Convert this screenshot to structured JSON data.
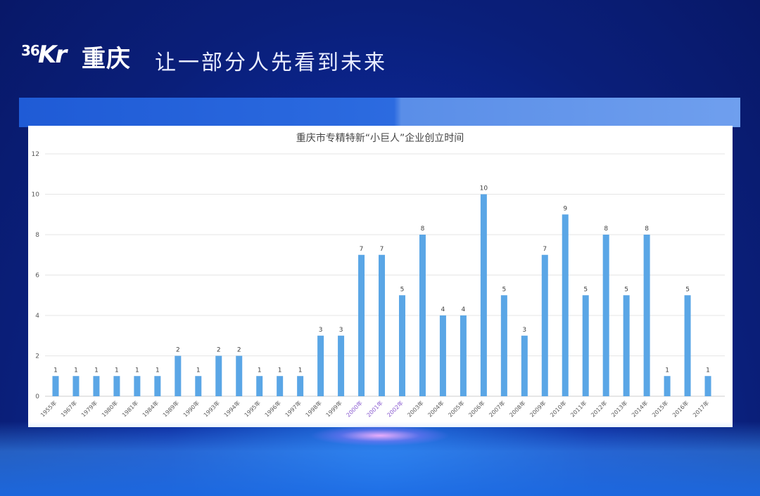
{
  "header": {
    "logo_num": "36",
    "logo_kr": "Kr",
    "city": "重庆",
    "slogan": "让一部分人先看到未来"
  },
  "chart_data": {
    "type": "bar",
    "title": "重庆市专精特新“小巨人”企业创立时间",
    "categories": [
      "1955年",
      "1967年",
      "1979年",
      "1980年",
      "1981年",
      "1984年",
      "1989年",
      "1990年",
      "1993年",
      "1994年",
      "1995年",
      "1996年",
      "1997年",
      "1998年",
      "1999年",
      "2000年",
      "2001年",
      "2002年",
      "2003年",
      "2004年",
      "2005年",
      "2006年",
      "2007年",
      "2008年",
      "2009年",
      "2010年",
      "2011年",
      "2012年",
      "2013年",
      "2014年",
      "2015年",
      "2016年",
      "2017年"
    ],
    "values": [
      1,
      1,
      1,
      1,
      1,
      1,
      2,
      1,
      2,
      2,
      1,
      1,
      1,
      3,
      3,
      7,
      7,
      5,
      8,
      4,
      4,
      10,
      5,
      3,
      7,
      9,
      5,
      8,
      5,
      8,
      1,
      5,
      1
    ],
    "ylim": [
      0,
      12
    ],
    "yticks": [
      0,
      2,
      4,
      6,
      8,
      10,
      12
    ],
    "grid": true,
    "bar_color": "#5aa6e6",
    "highlight_label_color": "#8a5bd0",
    "highlight_categories": [
      "2000年",
      "2001年",
      "2002年"
    ]
  }
}
